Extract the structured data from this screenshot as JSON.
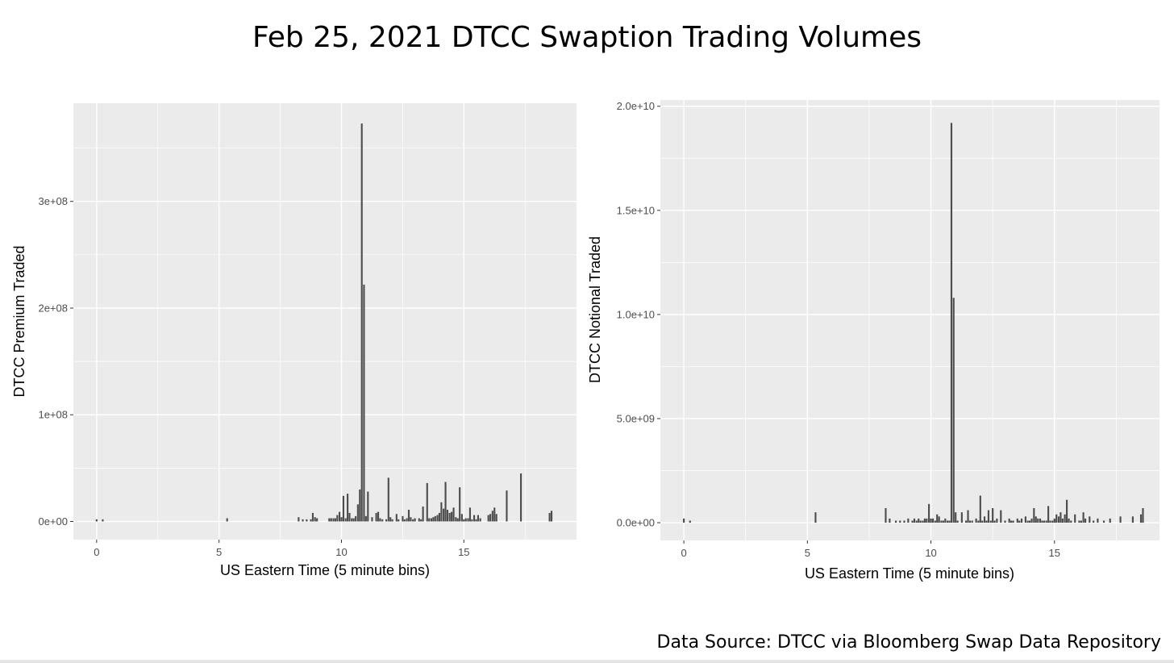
{
  "title": "Feb 25, 2021 DTCC Swaption Trading Volumes",
  "source": "Data Source: DTCC via Bloomberg Swap Data Repository",
  "colors": {
    "panel": "#ebebeb",
    "grid_major": "#ffffff",
    "bar": "#4d4d4d",
    "tick": "#4d4d4d"
  },
  "chart_data": [
    {
      "type": "bar",
      "title": "",
      "xlabel": "US Eastern Time (5 minute bins)",
      "ylabel": "DTCC Premium Traded",
      "xlim": [
        -0.95,
        19.6
      ],
      "ylim": [
        -17000000,
        392000000
      ],
      "x_ticks": [
        0,
        5,
        10,
        15
      ],
      "x_tick_labels": [
        "0",
        "5",
        "10",
        "15"
      ],
      "y_ticks": [
        0,
        100000000,
        200000000,
        300000000
      ],
      "y_tick_labels": [
        "0e+00",
        "1e+08",
        "2e+08",
        "3e+08"
      ],
      "bar_width": 0.07,
      "x": [
        0.0,
        0.25,
        5.33,
        8.25,
        8.42,
        8.58,
        8.75,
        8.83,
        8.92,
        9.0,
        9.5,
        9.58,
        9.67,
        9.75,
        9.83,
        9.92,
        10.0,
        10.08,
        10.17,
        10.25,
        10.33,
        10.42,
        10.5,
        10.58,
        10.67,
        10.75,
        10.83,
        10.92,
        11.0,
        11.08,
        11.25,
        11.42,
        11.5,
        11.58,
        11.67,
        11.83,
        11.92,
        12.0,
        12.08,
        12.25,
        12.33,
        12.5,
        12.58,
        12.67,
        12.75,
        12.83,
        12.92,
        13.0,
        13.17,
        13.25,
        13.33,
        13.5,
        13.58,
        13.67,
        13.75,
        13.83,
        13.92,
        14.0,
        14.08,
        14.17,
        14.25,
        14.33,
        14.42,
        14.5,
        14.58,
        14.67,
        14.75,
        14.83,
        14.92,
        15.0,
        15.08,
        15.17,
        15.25,
        15.33,
        15.42,
        15.5,
        15.58,
        15.67,
        16.0,
        16.08,
        16.17,
        16.25,
        16.33,
        16.75,
        17.33,
        18.5,
        18.58
      ],
      "values": [
        2000000,
        2000000,
        3000000,
        4000000,
        2000000,
        2000000,
        2000000,
        8000000,
        4000000,
        3000000,
        3000000,
        3000000,
        3000000,
        3000000,
        6000000,
        9000000,
        4000000,
        24000000,
        3000000,
        26000000,
        8000000,
        3000000,
        3000000,
        5000000,
        16000000,
        30000000,
        373000000,
        222000000,
        5000000,
        28000000,
        4000000,
        8000000,
        9000000,
        3000000,
        2000000,
        2000000,
        41000000,
        4000000,
        2000000,
        7000000,
        2000000,
        5000000,
        2000000,
        3000000,
        11000000,
        4000000,
        2000000,
        3000000,
        3000000,
        2000000,
        14000000,
        36000000,
        3000000,
        3000000,
        4000000,
        5000000,
        6000000,
        8000000,
        18000000,
        12000000,
        37000000,
        11000000,
        8000000,
        9000000,
        13000000,
        4000000,
        3000000,
        32000000,
        7000000,
        2000000,
        3000000,
        3000000,
        13000000,
        2000000,
        6000000,
        2000000,
        6000000,
        3000000,
        6000000,
        7000000,
        10000000,
        13000000,
        7000000,
        29000000,
        45000000,
        8000000,
        10000000
      ]
    },
    {
      "type": "bar",
      "title": "",
      "xlabel": "US Eastern Time (5 minute bins)",
      "ylabel": "DTCC Notional Traded",
      "xlim": [
        -0.95,
        19.25
      ],
      "ylim": [
        -850000000,
        20300000000
      ],
      "x_ticks": [
        0,
        5,
        10,
        15
      ],
      "x_tick_labels": [
        "0",
        "5",
        "10",
        "15"
      ],
      "y_ticks": [
        0,
        5000000000,
        10000000000,
        15000000000,
        20000000000
      ],
      "y_tick_labels": [
        "0.0e+00",
        "5.0e+09",
        "1.0e+10",
        "1.5e+10",
        "2.0e+10"
      ],
      "bar_width": 0.07,
      "x": [
        0.0,
        0.25,
        5.33,
        8.17,
        8.33,
        8.58,
        8.75,
        8.92,
        9.08,
        9.25,
        9.33,
        9.42,
        9.5,
        9.58,
        9.67,
        9.75,
        9.83,
        9.92,
        10.0,
        10.08,
        10.17,
        10.25,
        10.33,
        10.42,
        10.5,
        10.58,
        10.67,
        10.75,
        10.83,
        10.92,
        11.0,
        11.08,
        11.25,
        11.42,
        11.5,
        11.58,
        11.67,
        11.83,
        11.92,
        12.0,
        12.08,
        12.17,
        12.25,
        12.33,
        12.42,
        12.5,
        12.58,
        12.67,
        12.83,
        13.0,
        13.17,
        13.25,
        13.33,
        13.5,
        13.58,
        13.67,
        13.83,
        13.92,
        14.0,
        14.08,
        14.17,
        14.25,
        14.33,
        14.42,
        14.5,
        14.58,
        14.67,
        14.75,
        14.83,
        14.92,
        15.0,
        15.08,
        15.17,
        15.25,
        15.33,
        15.42,
        15.5,
        15.58,
        15.67,
        15.83,
        16.0,
        16.08,
        16.17,
        16.25,
        16.42,
        16.58,
        16.75,
        17.0,
        17.25,
        17.67,
        18.17,
        18.5,
        18.58
      ],
      "values": [
        200000000,
        100000000,
        500000000,
        700000000,
        200000000,
        100000000,
        100000000,
        100000000,
        200000000,
        100000000,
        200000000,
        100000000,
        200000000,
        100000000,
        100000000,
        200000000,
        200000000,
        900000000,
        200000000,
        200000000,
        100000000,
        400000000,
        300000000,
        100000000,
        100000000,
        200000000,
        100000000,
        100000000,
        19200000000,
        10800000000,
        500000000,
        100000000,
        500000000,
        100000000,
        600000000,
        100000000,
        100000000,
        200000000,
        100000000,
        1300000000,
        100000000,
        300000000,
        100000000,
        600000000,
        100000000,
        700000000,
        100000000,
        200000000,
        600000000,
        100000000,
        200000000,
        100000000,
        100000000,
        200000000,
        100000000,
        200000000,
        300000000,
        100000000,
        100000000,
        200000000,
        700000000,
        300000000,
        200000000,
        200000000,
        100000000,
        100000000,
        100000000,
        800000000,
        100000000,
        100000000,
        200000000,
        400000000,
        300000000,
        500000000,
        200000000,
        400000000,
        1100000000,
        200000000,
        100000000,
        400000000,
        100000000,
        100000000,
        500000000,
        200000000,
        300000000,
        100000000,
        200000000,
        100000000,
        200000000,
        300000000,
        300000000,
        400000000,
        700000000
      ]
    }
  ]
}
